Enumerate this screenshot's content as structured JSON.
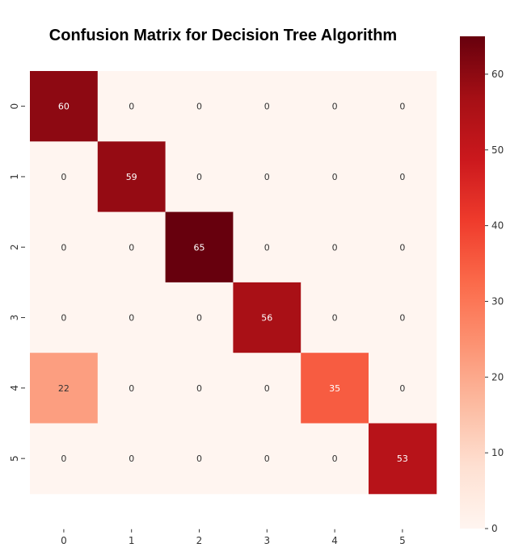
{
  "chart_data": {
    "type": "heatmap",
    "title": "Confusion Matrix for Decision Tree Algorithm",
    "xlabel": "",
    "ylabel": "",
    "x_categories": [
      "0",
      "1",
      "2",
      "3",
      "4",
      "5"
    ],
    "y_categories": [
      "0",
      "1",
      "2",
      "3",
      "4",
      "5"
    ],
    "values": [
      [
        60,
        0,
        0,
        0,
        0,
        0
      ],
      [
        0,
        59,
        0,
        0,
        0,
        0
      ],
      [
        0,
        0,
        65,
        0,
        0,
        0
      ],
      [
        0,
        0,
        0,
        56,
        0,
        0
      ],
      [
        22,
        0,
        0,
        0,
        35,
        0
      ],
      [
        0,
        0,
        0,
        0,
        0,
        53
      ]
    ],
    "colormap": "Reds",
    "vmin": 0,
    "vmax": 65,
    "colorbar_ticks": [
      0,
      10,
      20,
      30,
      40,
      50,
      60
    ],
    "annotations": true,
    "legend": "colorbar-right"
  }
}
